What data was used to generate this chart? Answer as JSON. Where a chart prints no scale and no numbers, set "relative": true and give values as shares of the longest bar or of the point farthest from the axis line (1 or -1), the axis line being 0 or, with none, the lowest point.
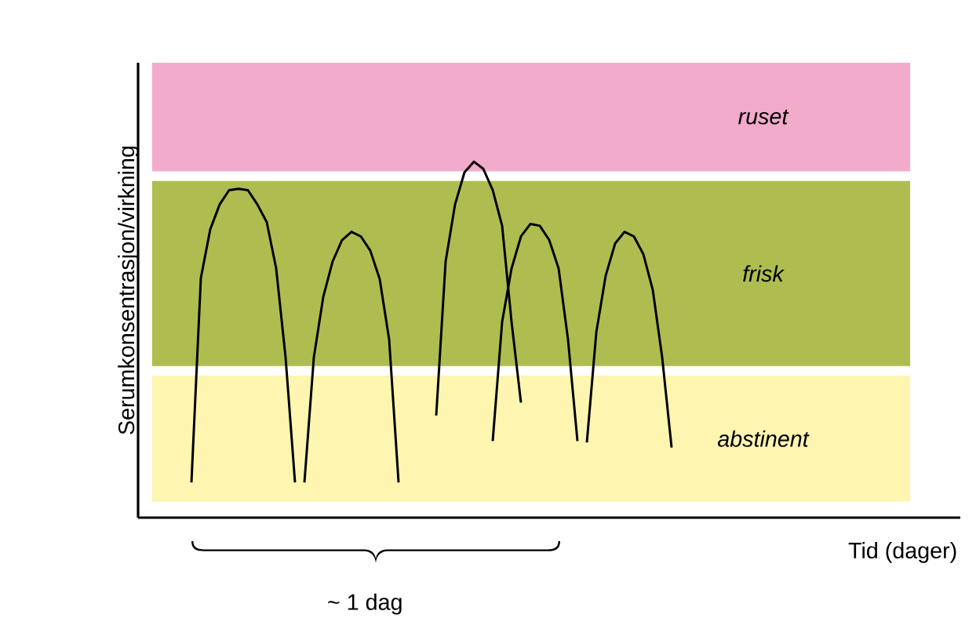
{
  "chart_data": {
    "type": "line",
    "relative": true,
    "xlabel": "Tid (dager)",
    "ylabel": "Serumkonsentrasjon/virkning",
    "marker": "none",
    "line_style": "solid",
    "categories": [
      null,
      null,
      null,
      null,
      null,
      null,
      null,
      null,
      null,
      null,
      null,
      null,
      null,
      null,
      null,
      null,
      null,
      null,
      null,
      null,
      null,
      null,
      null,
      null,
      null,
      null,
      null,
      null,
      null,
      null,
      null,
      null,
      null,
      null,
      null,
      null,
      null,
      null,
      null,
      null,
      null,
      null,
      null,
      null,
      null,
      null,
      null,
      null,
      null,
      null,
      null,
      null,
      null,
      null,
      null,
      null,
      null,
      null,
      null,
      null,
      null,
      null,
      null,
      null,
      null,
      null,
      null,
      null,
      null,
      null,
      null,
      null,
      null,
      null,
      null,
      null,
      null,
      null,
      null,
      null,
      null
    ],
    "annotations": [
      "~ 1 dag"
    ],
    "bands": [
      {
        "axis": "y",
        "from": 0.973,
        "to": 1.278,
        "label": "ruset",
        "color": "#f3abcb"
      },
      {
        "axis": "y",
        "from": 0.426,
        "to": 0.946,
        "label": "frisk",
        "color": "#afbd50"
      },
      {
        "axis": "y",
        "from": 0.045,
        "to": 0.399,
        "label": "abstinent",
        "color": "#fdf5b0"
      }
    ],
    "series": [
      {
        "color": "#000000",
        "values": [
          null,
          null,
          null,
          null,
          0.099,
          0.673,
          0.81,
          0.88,
          0.92,
          0.924,
          0.92,
          0.88,
          0.83,
          0.7,
          0.45,
          0.099,
          null,
          null,
          null,
          null,
          null,
          null,
          null,
          null,
          null,
          null,
          null,
          null,
          null,
          null,
          null,
          null,
          null,
          null,
          null,
          null,
          null,
          null,
          null,
          null,
          null,
          null,
          null,
          null,
          null,
          null,
          null,
          null,
          null,
          null,
          null,
          null,
          null,
          null,
          null,
          null,
          null,
          null,
          null,
          null,
          null,
          null,
          null,
          null,
          null,
          null,
          null,
          null,
          null,
          null,
          null,
          null,
          null,
          null,
          null,
          null,
          null,
          null,
          null,
          null,
          null
        ]
      },
      {
        "color": "#000000",
        "values": [
          null,
          null,
          null,
          null,
          null,
          null,
          null,
          null,
          null,
          null,
          null,
          null,
          null,
          null,
          null,
          null,
          0.099,
          0.45,
          0.62,
          0.72,
          0.78,
          0.803,
          0.79,
          0.75,
          0.67,
          0.5,
          0.099,
          null,
          null,
          null,
          null,
          null,
          null,
          null,
          null,
          null,
          null,
          null,
          null,
          null,
          null,
          null,
          null,
          null,
          null,
          null,
          null,
          null,
          null,
          null,
          null,
          null,
          null,
          null,
          null,
          null,
          null,
          null,
          null,
          null,
          null,
          null,
          null,
          null,
          null,
          null,
          null,
          null,
          null,
          null,
          null,
          null,
          null,
          null,
          null,
          null,
          null,
          null,
          null,
          null,
          null
        ]
      },
      {
        "color": "#000000",
        "values": [
          null,
          null,
          null,
          null,
          null,
          null,
          null,
          null,
          null,
          null,
          null,
          null,
          null,
          null,
          null,
          null,
          null,
          null,
          null,
          null,
          null,
          null,
          null,
          null,
          null,
          null,
          null,
          null,
          null,
          null,
          0.287,
          0.72,
          0.88,
          0.97,
          1.0,
          0.98,
          0.92,
          0.82,
          0.55,
          0.323,
          null,
          null,
          null,
          null,
          null,
          null,
          null,
          null,
          null,
          null,
          null,
          null,
          null,
          null,
          null,
          null,
          null,
          null,
          null,
          null,
          null,
          null,
          null,
          null,
          null,
          null,
          null,
          null,
          null,
          null,
          null,
          null,
          null,
          null,
          null,
          null,
          null,
          null,
          null,
          null,
          null
        ]
      },
      {
        "color": "#000000",
        "values": [
          null,
          null,
          null,
          null,
          null,
          null,
          null,
          null,
          null,
          null,
          null,
          null,
          null,
          null,
          null,
          null,
          null,
          null,
          null,
          null,
          null,
          null,
          null,
          null,
          null,
          null,
          null,
          null,
          null,
          null,
          null,
          null,
          null,
          null,
          null,
          null,
          0.215,
          0.55,
          0.7,
          0.79,
          0.825,
          0.82,
          0.78,
          0.7,
          0.5,
          0.215,
          null,
          null,
          null,
          null,
          null,
          null,
          null,
          null,
          null,
          null,
          null,
          null,
          null,
          null,
          null,
          null,
          null,
          null,
          null,
          null,
          null,
          null,
          null,
          null,
          null,
          null,
          null,
          null,
          null,
          null,
          null,
          null,
          null,
          null,
          null
        ]
      },
      {
        "color": "#000000",
        "values": [
          null,
          null,
          null,
          null,
          null,
          null,
          null,
          null,
          null,
          null,
          null,
          null,
          null,
          null,
          null,
          null,
          null,
          null,
          null,
          null,
          null,
          null,
          null,
          null,
          null,
          null,
          null,
          null,
          null,
          null,
          null,
          null,
          null,
          null,
          null,
          null,
          null,
          null,
          null,
          null,
          null,
          null,
          null,
          null,
          null,
          null,
          0.211,
          0.52,
          0.68,
          0.77,
          0.803,
          0.79,
          0.74,
          0.64,
          0.45,
          0.197,
          null,
          null,
          null,
          null,
          null,
          null,
          null,
          null,
          null,
          null,
          null,
          null,
          null,
          null,
          null,
          null,
          null,
          null,
          null,
          null,
          null,
          null,
          null,
          null,
          null
        ]
      }
    ]
  }
}
